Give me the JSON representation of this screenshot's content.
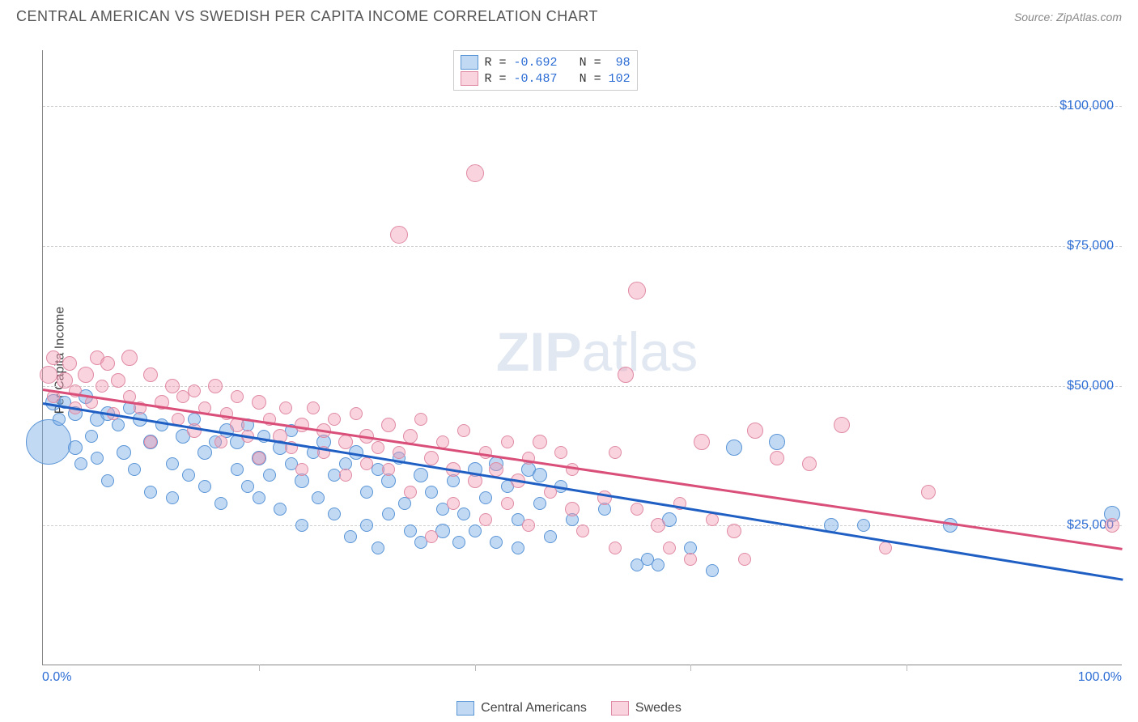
{
  "title": "CENTRAL AMERICAN VS SWEDISH PER CAPITA INCOME CORRELATION CHART",
  "source": "Source: ZipAtlas.com",
  "watermark_bold": "ZIP",
  "watermark_light": "atlas",
  "chart": {
    "type": "scatter",
    "ylabel": "Per Capita Income",
    "xlim": [
      0,
      100
    ],
    "ylim": [
      0,
      110000
    ],
    "xticks": [
      0,
      100
    ],
    "xtick_labels": [
      "0.0%",
      "100.0%"
    ],
    "xminor": [
      20,
      40,
      60,
      80
    ],
    "yticks": [
      25000,
      50000,
      75000,
      100000
    ],
    "ytick_labels": [
      "$25,000",
      "$50,000",
      "$75,000",
      "$100,000"
    ],
    "grid_color": "#d0d0d0",
    "background_color": "#ffffff",
    "axis_color": "#888888",
    "tick_label_color": "#2b6cd4",
    "series": [
      {
        "name": "Central Americans",
        "fill": "rgba(120,170,230,0.45)",
        "stroke": "#5a95d6",
        "trend_color": "#1f5fc4",
        "R": "-0.692",
        "N": "98",
        "trend": {
          "x1": 0,
          "y1": 47000,
          "x2": 100,
          "y2": 15500
        },
        "points": [
          {
            "x": 0.5,
            "y": 40000,
            "r": 28
          },
          {
            "x": 1,
            "y": 47000,
            "r": 10
          },
          {
            "x": 1.5,
            "y": 44000,
            "r": 8
          },
          {
            "x": 2,
            "y": 47000,
            "r": 8
          },
          {
            "x": 3,
            "y": 45000,
            "r": 9
          },
          {
            "x": 3,
            "y": 39000,
            "r": 9
          },
          {
            "x": 3.5,
            "y": 36000,
            "r": 8
          },
          {
            "x": 4,
            "y": 48000,
            "r": 9
          },
          {
            "x": 4.5,
            "y": 41000,
            "r": 8
          },
          {
            "x": 5,
            "y": 44000,
            "r": 9
          },
          {
            "x": 5,
            "y": 37000,
            "r": 8
          },
          {
            "x": 6,
            "y": 45000,
            "r": 9
          },
          {
            "x": 6,
            "y": 33000,
            "r": 8
          },
          {
            "x": 7,
            "y": 43000,
            "r": 8
          },
          {
            "x": 7.5,
            "y": 38000,
            "r": 9
          },
          {
            "x": 8,
            "y": 46000,
            "r": 8
          },
          {
            "x": 8.5,
            "y": 35000,
            "r": 8
          },
          {
            "x": 9,
            "y": 44000,
            "r": 9
          },
          {
            "x": 10,
            "y": 40000,
            "r": 9
          },
          {
            "x": 10,
            "y": 31000,
            "r": 8
          },
          {
            "x": 11,
            "y": 43000,
            "r": 8
          },
          {
            "x": 12,
            "y": 36000,
            "r": 8
          },
          {
            "x": 12,
            "y": 30000,
            "r": 8
          },
          {
            "x": 13,
            "y": 41000,
            "r": 9
          },
          {
            "x": 13.5,
            "y": 34000,
            "r": 8
          },
          {
            "x": 14,
            "y": 44000,
            "r": 8
          },
          {
            "x": 15,
            "y": 38000,
            "r": 9
          },
          {
            "x": 15,
            "y": 32000,
            "r": 8
          },
          {
            "x": 16,
            "y": 40000,
            "r": 8
          },
          {
            "x": 16.5,
            "y": 29000,
            "r": 8
          },
          {
            "x": 17,
            "y": 42000,
            "r": 9
          },
          {
            "x": 18,
            "y": 35000,
            "r": 8
          },
          {
            "x": 18,
            "y": 40000,
            "r": 9
          },
          {
            "x": 19,
            "y": 32000,
            "r": 8
          },
          {
            "x": 19,
            "y": 43000,
            "r": 8
          },
          {
            "x": 20,
            "y": 37000,
            "r": 9
          },
          {
            "x": 20,
            "y": 30000,
            "r": 8
          },
          {
            "x": 20.5,
            "y": 41000,
            "r": 8
          },
          {
            "x": 21,
            "y": 34000,
            "r": 8
          },
          {
            "x": 22,
            "y": 39000,
            "r": 9
          },
          {
            "x": 22,
            "y": 28000,
            "r": 8
          },
          {
            "x": 23,
            "y": 36000,
            "r": 8
          },
          {
            "x": 23,
            "y": 42000,
            "r": 8
          },
          {
            "x": 24,
            "y": 33000,
            "r": 9
          },
          {
            "x": 24,
            "y": 25000,
            "r": 8
          },
          {
            "x": 25,
            "y": 38000,
            "r": 8
          },
          {
            "x": 25.5,
            "y": 30000,
            "r": 8
          },
          {
            "x": 26,
            "y": 40000,
            "r": 9
          },
          {
            "x": 27,
            "y": 34000,
            "r": 8
          },
          {
            "x": 27,
            "y": 27000,
            "r": 8
          },
          {
            "x": 28,
            "y": 36000,
            "r": 8
          },
          {
            "x": 28.5,
            "y": 23000,
            "r": 8
          },
          {
            "x": 29,
            "y": 38000,
            "r": 9
          },
          {
            "x": 30,
            "y": 31000,
            "r": 8
          },
          {
            "x": 30,
            "y": 25000,
            "r": 8
          },
          {
            "x": 31,
            "y": 35000,
            "r": 8
          },
          {
            "x": 31,
            "y": 21000,
            "r": 8
          },
          {
            "x": 32,
            "y": 33000,
            "r": 9
          },
          {
            "x": 32,
            "y": 27000,
            "r": 8
          },
          {
            "x": 33,
            "y": 37000,
            "r": 8
          },
          {
            "x": 33.5,
            "y": 29000,
            "r": 8
          },
          {
            "x": 34,
            "y": 24000,
            "r": 8
          },
          {
            "x": 35,
            "y": 34000,
            "r": 9
          },
          {
            "x": 35,
            "y": 22000,
            "r": 8
          },
          {
            "x": 36,
            "y": 31000,
            "r": 8
          },
          {
            "x": 37,
            "y": 28000,
            "r": 8
          },
          {
            "x": 37,
            "y": 24000,
            "r": 9
          },
          {
            "x": 38,
            "y": 33000,
            "r": 8
          },
          {
            "x": 38.5,
            "y": 22000,
            "r": 8
          },
          {
            "x": 39,
            "y": 27000,
            "r": 8
          },
          {
            "x": 40,
            "y": 35000,
            "r": 9
          },
          {
            "x": 40,
            "y": 24000,
            "r": 8
          },
          {
            "x": 41,
            "y": 30000,
            "r": 8
          },
          {
            "x": 42,
            "y": 36000,
            "r": 9
          },
          {
            "x": 42,
            "y": 22000,
            "r": 8
          },
          {
            "x": 43,
            "y": 32000,
            "r": 8
          },
          {
            "x": 44,
            "y": 26000,
            "r": 8
          },
          {
            "x": 44,
            "y": 21000,
            "r": 8
          },
          {
            "x": 45,
            "y": 35000,
            "r": 9
          },
          {
            "x": 46,
            "y": 29000,
            "r": 8
          },
          {
            "x": 46,
            "y": 34000,
            "r": 9
          },
          {
            "x": 47,
            "y": 23000,
            "r": 8
          },
          {
            "x": 48,
            "y": 32000,
            "r": 8
          },
          {
            "x": 49,
            "y": 26000,
            "r": 8
          },
          {
            "x": 52,
            "y": 28000,
            "r": 8
          },
          {
            "x": 55,
            "y": 18000,
            "r": 8
          },
          {
            "x": 56,
            "y": 19000,
            "r": 8
          },
          {
            "x": 57,
            "y": 18000,
            "r": 8
          },
          {
            "x": 58,
            "y": 26000,
            "r": 9
          },
          {
            "x": 60,
            "y": 21000,
            "r": 8
          },
          {
            "x": 62,
            "y": 17000,
            "r": 8
          },
          {
            "x": 64,
            "y": 39000,
            "r": 10
          },
          {
            "x": 68,
            "y": 40000,
            "r": 10
          },
          {
            "x": 73,
            "y": 25000,
            "r": 9
          },
          {
            "x": 76,
            "y": 25000,
            "r": 8
          },
          {
            "x": 84,
            "y": 25000,
            "r": 9
          },
          {
            "x": 99,
            "y": 27000,
            "r": 10
          }
        ]
      },
      {
        "name": "Swedes",
        "fill": "rgba(240,150,175,0.42)",
        "stroke": "#e08ba5",
        "trend_color": "#d94f7a",
        "R": "-0.487",
        "N": "102",
        "trend": {
          "x1": 0,
          "y1": 49500,
          "x2": 100,
          "y2": 21000
        },
        "points": [
          {
            "x": 0.5,
            "y": 52000,
            "r": 11
          },
          {
            "x": 1,
            "y": 55000,
            "r": 9
          },
          {
            "x": 1,
            "y": 48000,
            "r": 8
          },
          {
            "x": 2,
            "y": 51000,
            "r": 10
          },
          {
            "x": 2.5,
            "y": 54000,
            "r": 9
          },
          {
            "x": 3,
            "y": 49000,
            "r": 8
          },
          {
            "x": 3,
            "y": 46000,
            "r": 8
          },
          {
            "x": 4,
            "y": 52000,
            "r": 10
          },
          {
            "x": 4.5,
            "y": 47000,
            "r": 8
          },
          {
            "x": 5,
            "y": 55000,
            "r": 9
          },
          {
            "x": 5.5,
            "y": 50000,
            "r": 8
          },
          {
            "x": 6,
            "y": 54000,
            "r": 9
          },
          {
            "x": 6.5,
            "y": 45000,
            "r": 8
          },
          {
            "x": 7,
            "y": 51000,
            "r": 9
          },
          {
            "x": 8,
            "y": 55000,
            "r": 10
          },
          {
            "x": 8,
            "y": 48000,
            "r": 8
          },
          {
            "x": 9,
            "y": 46000,
            "r": 8
          },
          {
            "x": 10,
            "y": 52000,
            "r": 9
          },
          {
            "x": 10,
            "y": 40000,
            "r": 8
          },
          {
            "x": 11,
            "y": 47000,
            "r": 9
          },
          {
            "x": 12,
            "y": 50000,
            "r": 9
          },
          {
            "x": 12.5,
            "y": 44000,
            "r": 8
          },
          {
            "x": 13,
            "y": 48000,
            "r": 8
          },
          {
            "x": 14,
            "y": 42000,
            "r": 9
          },
          {
            "x": 14,
            "y": 49000,
            "r": 8
          },
          {
            "x": 15,
            "y": 46000,
            "r": 8
          },
          {
            "x": 16,
            "y": 50000,
            "r": 9
          },
          {
            "x": 16.5,
            "y": 40000,
            "r": 8
          },
          {
            "x": 17,
            "y": 45000,
            "r": 8
          },
          {
            "x": 18,
            "y": 43000,
            "r": 9
          },
          {
            "x": 18,
            "y": 48000,
            "r": 8
          },
          {
            "x": 19,
            "y": 41000,
            "r": 8
          },
          {
            "x": 20,
            "y": 47000,
            "r": 9
          },
          {
            "x": 20,
            "y": 37000,
            "r": 8
          },
          {
            "x": 21,
            "y": 44000,
            "r": 8
          },
          {
            "x": 22,
            "y": 41000,
            "r": 9
          },
          {
            "x": 22.5,
            "y": 46000,
            "r": 8
          },
          {
            "x": 23,
            "y": 39000,
            "r": 8
          },
          {
            "x": 24,
            "y": 43000,
            "r": 9
          },
          {
            "x": 24,
            "y": 35000,
            "r": 8
          },
          {
            "x": 25,
            "y": 46000,
            "r": 8
          },
          {
            "x": 26,
            "y": 42000,
            "r": 9
          },
          {
            "x": 26,
            "y": 38000,
            "r": 8
          },
          {
            "x": 27,
            "y": 44000,
            "r": 8
          },
          {
            "x": 28,
            "y": 40000,
            "r": 9
          },
          {
            "x": 28,
            "y": 34000,
            "r": 8
          },
          {
            "x": 29,
            "y": 45000,
            "r": 8
          },
          {
            "x": 30,
            "y": 41000,
            "r": 9
          },
          {
            "x": 30,
            "y": 36000,
            "r": 8
          },
          {
            "x": 31,
            "y": 39000,
            "r": 8
          },
          {
            "x": 32,
            "y": 43000,
            "r": 9
          },
          {
            "x": 32,
            "y": 35000,
            "r": 8
          },
          {
            "x": 33,
            "y": 77000,
            "r": 11
          },
          {
            "x": 33,
            "y": 38000,
            "r": 8
          },
          {
            "x": 34,
            "y": 41000,
            "r": 9
          },
          {
            "x": 34,
            "y": 31000,
            "r": 8
          },
          {
            "x": 35,
            "y": 44000,
            "r": 8
          },
          {
            "x": 36,
            "y": 37000,
            "r": 9
          },
          {
            "x": 36,
            "y": 23000,
            "r": 8
          },
          {
            "x": 37,
            "y": 40000,
            "r": 8
          },
          {
            "x": 38,
            "y": 35000,
            "r": 9
          },
          {
            "x": 38,
            "y": 29000,
            "r": 8
          },
          {
            "x": 39,
            "y": 42000,
            "r": 8
          },
          {
            "x": 40,
            "y": 88000,
            "r": 11
          },
          {
            "x": 40,
            "y": 33000,
            "r": 9
          },
          {
            "x": 41,
            "y": 38000,
            "r": 8
          },
          {
            "x": 41,
            "y": 26000,
            "r": 8
          },
          {
            "x": 42,
            "y": 35000,
            "r": 9
          },
          {
            "x": 43,
            "y": 29000,
            "r": 8
          },
          {
            "x": 43,
            "y": 40000,
            "r": 8
          },
          {
            "x": 44,
            "y": 33000,
            "r": 9
          },
          {
            "x": 45,
            "y": 37000,
            "r": 8
          },
          {
            "x": 45,
            "y": 25000,
            "r": 8
          },
          {
            "x": 46,
            "y": 40000,
            "r": 9
          },
          {
            "x": 47,
            "y": 31000,
            "r": 8
          },
          {
            "x": 48,
            "y": 38000,
            "r": 8
          },
          {
            "x": 49,
            "y": 28000,
            "r": 9
          },
          {
            "x": 49,
            "y": 35000,
            "r": 8
          },
          {
            "x": 50,
            "y": 24000,
            "r": 8
          },
          {
            "x": 52,
            "y": 30000,
            "r": 9
          },
          {
            "x": 53,
            "y": 38000,
            "r": 8
          },
          {
            "x": 53,
            "y": 21000,
            "r": 8
          },
          {
            "x": 54,
            "y": 52000,
            "r": 10
          },
          {
            "x": 55,
            "y": 28000,
            "r": 8
          },
          {
            "x": 55,
            "y": 67000,
            "r": 11
          },
          {
            "x": 57,
            "y": 25000,
            "r": 9
          },
          {
            "x": 58,
            "y": 21000,
            "r": 8
          },
          {
            "x": 59,
            "y": 29000,
            "r": 8
          },
          {
            "x": 60,
            "y": 19000,
            "r": 8
          },
          {
            "x": 61,
            "y": 40000,
            "r": 10
          },
          {
            "x": 62,
            "y": 26000,
            "r": 8
          },
          {
            "x": 64,
            "y": 24000,
            "r": 9
          },
          {
            "x": 65,
            "y": 19000,
            "r": 8
          },
          {
            "x": 66,
            "y": 42000,
            "r": 10
          },
          {
            "x": 68,
            "y": 37000,
            "r": 9
          },
          {
            "x": 71,
            "y": 36000,
            "r": 9
          },
          {
            "x": 74,
            "y": 43000,
            "r": 10
          },
          {
            "x": 78,
            "y": 21000,
            "r": 8
          },
          {
            "x": 82,
            "y": 31000,
            "r": 9
          },
          {
            "x": 99,
            "y": 25000,
            "r": 9
          }
        ]
      }
    ],
    "legend_bottom": [
      {
        "label": "Central Americans",
        "fill": "rgba(120,170,230,0.45)",
        "stroke": "#5a95d6"
      },
      {
        "label": "Swedes",
        "fill": "rgba(240,150,175,0.42)",
        "stroke": "#e08ba5"
      }
    ]
  }
}
